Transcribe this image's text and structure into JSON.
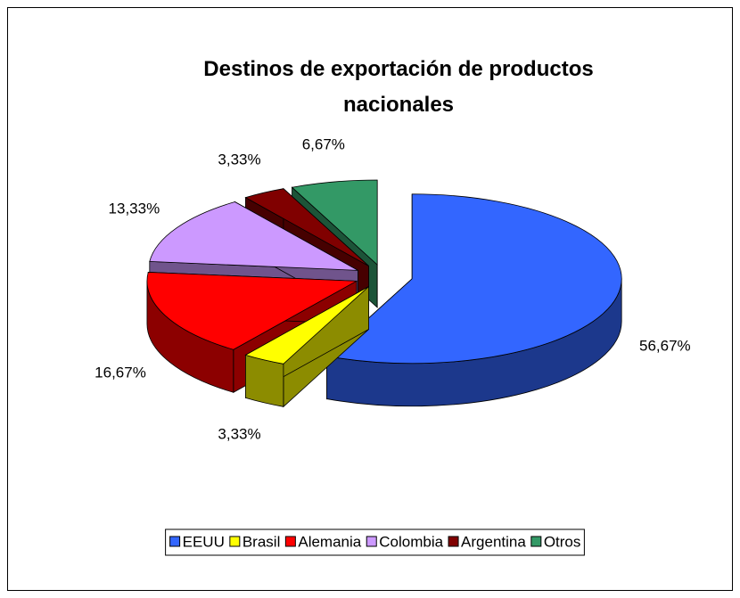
{
  "chart_data": {
    "type": "pie3d",
    "title": "Destinos de exportación de productos nacionales",
    "categories": [
      "EEUU",
      "Brasil",
      "Alemania",
      "Colombia",
      "Argentina",
      "Otros"
    ],
    "values": [
      56.67,
      3.33,
      16.67,
      13.33,
      3.33,
      6.67
    ],
    "value_labels": [
      "56,67%",
      "3,33%",
      "16,67%",
      "13,33%",
      "3,33%",
      "6,67%"
    ],
    "colors": [
      "#3366ff",
      "#ffff00",
      "#ff0000",
      "#cc99ff",
      "#800000",
      "#339966"
    ],
    "legend": "bottom"
  }
}
